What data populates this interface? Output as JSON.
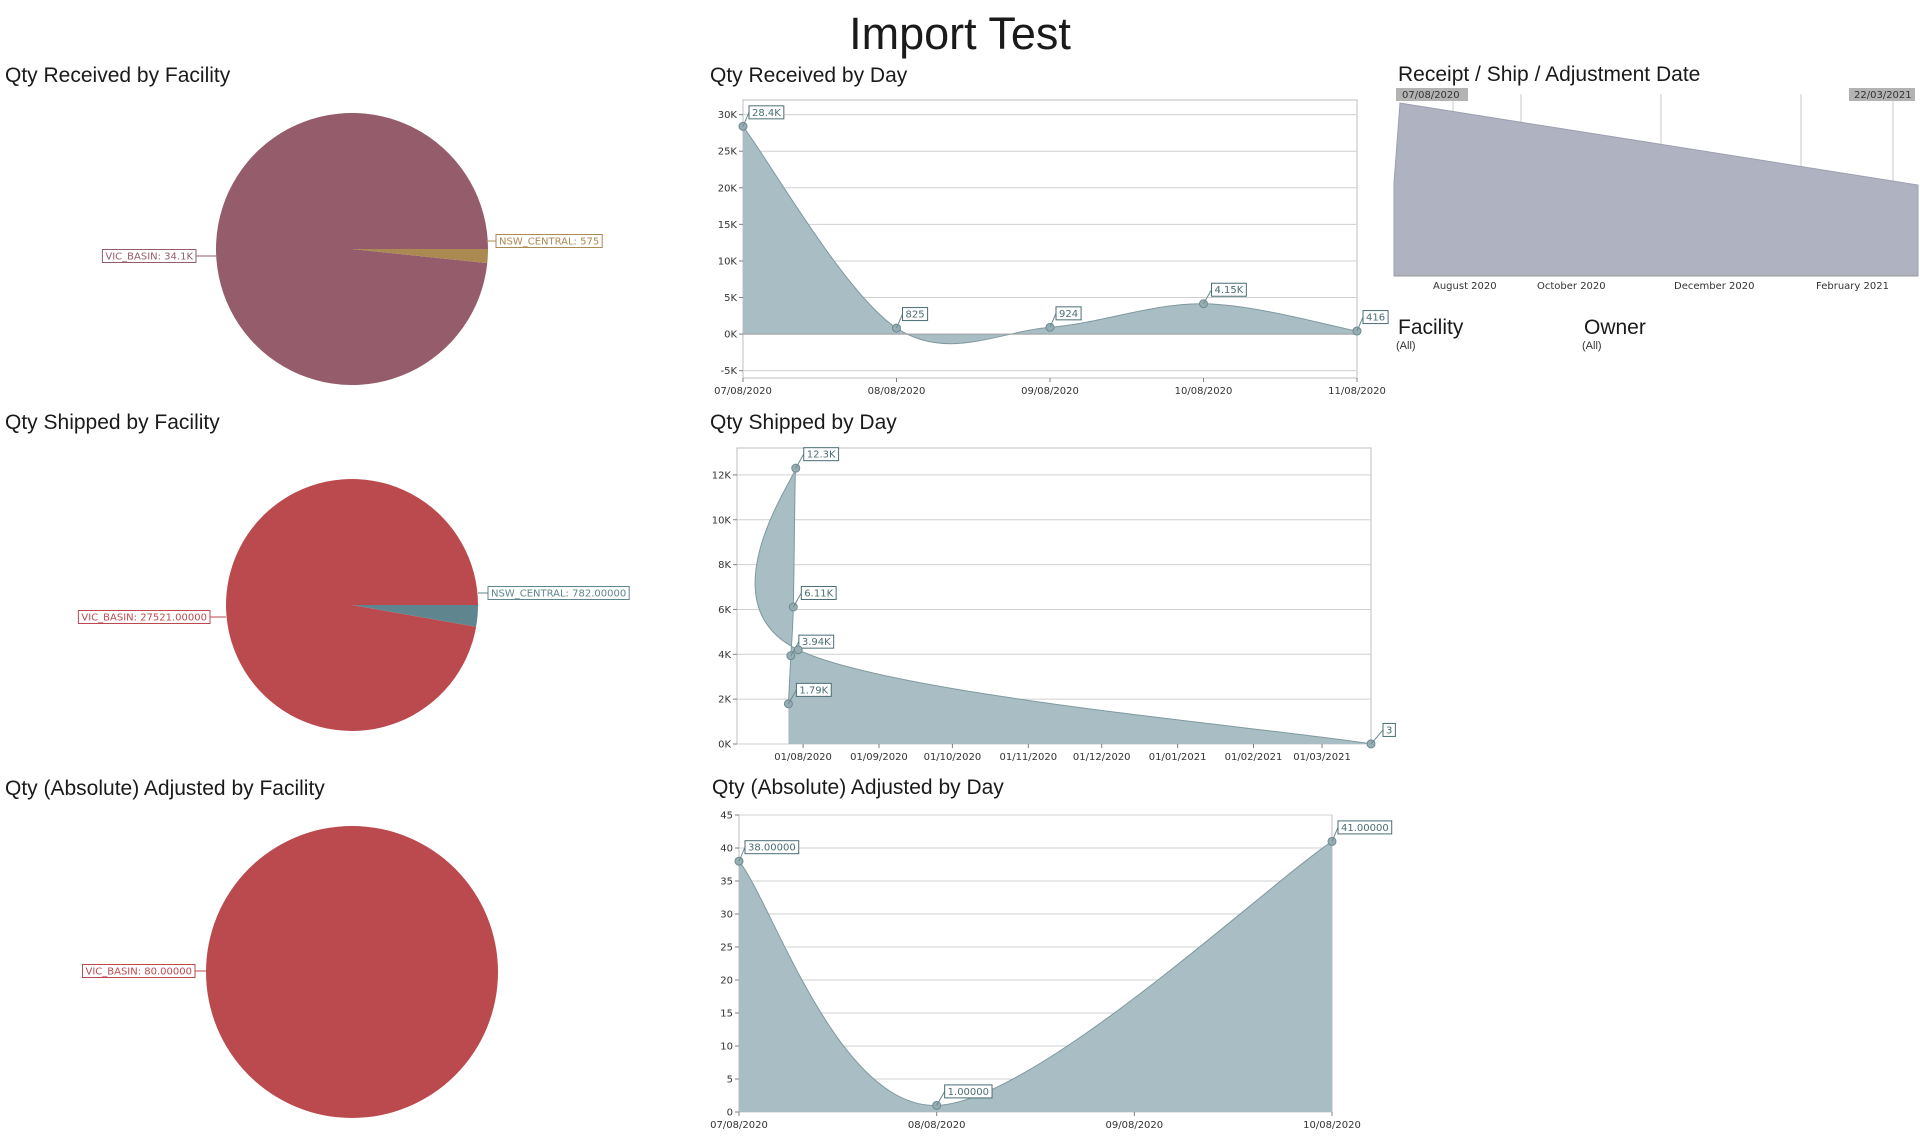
{
  "dashboard": {
    "title": "Import Test"
  },
  "panels": {
    "received_by_facility": "Qty Received by Facility",
    "received_by_day": "Qty Received by Day",
    "date_range": "Receipt / Ship / Adjustment Date",
    "shipped_by_facility": "Qty Shipped by Facility",
    "shipped_by_day": "Qty Shipped by Day",
    "adjusted_by_facility": "Qty (Absolute) Adjusted by Facility",
    "adjusted_by_day": "Qty (Absolute) Adjusted by Day"
  },
  "filters": {
    "facility": {
      "label": "Facility",
      "value": "(All)"
    },
    "owner": {
      "label": "Owner",
      "value": "(All)"
    }
  },
  "colors": {
    "pie_received_main": "#955c6c",
    "pie_received_minor": "#ab8a52",
    "pie_red": "#bb4a4f",
    "pie_shipped_minor": "#5f858e",
    "area_fill": "#a8bec4",
    "area_stroke": "#7f999f",
    "range_fill": "#aeb2c1",
    "range_badge": "#b3b3b3"
  },
  "chart_data": [
    {
      "id": "pie_received",
      "type": "pie",
      "slices": [
        {
          "name": "VIC_BASIN",
          "value": 34100,
          "label": "VIC_BASIN: 34.1K"
        },
        {
          "name": "NSW_CENTRAL",
          "value": 575,
          "label": "NSW_CENTRAL: 575"
        }
      ]
    },
    {
      "id": "pie_shipped",
      "type": "pie",
      "slices": [
        {
          "name": "VIC_BASIN",
          "value": 27521,
          "label": "VIC_BASIN: 27521.00000"
        },
        {
          "name": "NSW_CENTRAL",
          "value": 782,
          "label": "NSW_CENTRAL: 782.00000"
        }
      ]
    },
    {
      "id": "pie_adjusted",
      "type": "pie",
      "slices": [
        {
          "name": "VIC_BASIN",
          "value": 80,
          "label": "VIC_BASIN: 80.00000"
        }
      ]
    },
    {
      "id": "received_by_day",
      "type": "area",
      "x": [
        "2020-08-07",
        "2020-08-08",
        "2020-08-09",
        "2020-08-10",
        "2020-08-11"
      ],
      "xtick_labels": [
        "07/08/2020",
        "08/08/2020",
        "09/08/2020",
        "10/08/2020",
        "11/08/2020"
      ],
      "values": [
        28400,
        825,
        924,
        4150,
        416
      ],
      "point_labels": [
        "28.4K",
        "825",
        "924",
        "4.15K",
        "416"
      ],
      "yticks": [
        -5000,
        0,
        5000,
        10000,
        15000,
        20000,
        25000,
        30000
      ],
      "ytick_labels": [
        "-5K",
        "0K",
        "5K",
        "10K",
        "15K",
        "20K",
        "25K",
        "30K"
      ],
      "ylim": [
        -6000,
        32000
      ],
      "grid": true
    },
    {
      "id": "shipped_by_day",
      "type": "area",
      "x": [
        "2020-07-26",
        "2020-07-27",
        "2020-07-28",
        "2020-07-29",
        "2020-07-30",
        "2021-03-21"
      ],
      "values": [
        1790,
        3940,
        6110,
        12300,
        4200,
        3
      ],
      "point_labels": [
        "1.79K",
        "3.94K",
        "6.11K",
        "12.3K",
        "",
        "3"
      ],
      "xtick_dates": [
        "2020-08-01",
        "2020-09-01",
        "2020-10-01",
        "2020-11-01",
        "2020-12-01",
        "2021-01-01",
        "2021-02-01",
        "2021-03-01"
      ],
      "xtick_labels": [
        "01/08/2020",
        "01/09/2020",
        "01/10/2020",
        "01/11/2020",
        "01/12/2020",
        "01/01/2021",
        "01/02/2021",
        "01/03/2021"
      ],
      "xlim": [
        "2020-07-05",
        "2021-03-21"
      ],
      "yticks": [
        0,
        2000,
        4000,
        6000,
        8000,
        10000,
        12000
      ],
      "ytick_labels": [
        "0K",
        "2K",
        "4K",
        "6K",
        "8K",
        "10K",
        "12K"
      ],
      "ylim": [
        0,
        13200
      ],
      "grid": true
    },
    {
      "id": "adjusted_by_day",
      "type": "area",
      "x": [
        "2020-08-07",
        "2020-08-08",
        "2020-08-10"
      ],
      "values": [
        38,
        1,
        41
      ],
      "point_labels": [
        "38.00000",
        "1.00000",
        "41.00000"
      ],
      "xtick_dates": [
        "2020-08-07",
        "2020-08-08",
        "2020-08-09",
        "2020-08-10"
      ],
      "xtick_labels": [
        "07/08/2020",
        "08/08/2020",
        "09/08/2020",
        "10/08/2020"
      ],
      "yticks": [
        0,
        5,
        10,
        15,
        20,
        25,
        30,
        35,
        40,
        45
      ],
      "ytick_labels": [
        "0",
        "5",
        "10",
        "15",
        "20",
        "25",
        "30",
        "35",
        "40",
        "45"
      ],
      "ylim": [
        0,
        45
      ],
      "grid": true
    },
    {
      "id": "date_range",
      "type": "area",
      "range_start": "07/08/2020",
      "range_end": "22/03/2021",
      "xtick_labels": [
        "August 2020",
        "October 2020",
        "December 2020",
        "February 2021"
      ],
      "values": [
        0.95,
        0.5
      ],
      "grid": true
    }
  ]
}
